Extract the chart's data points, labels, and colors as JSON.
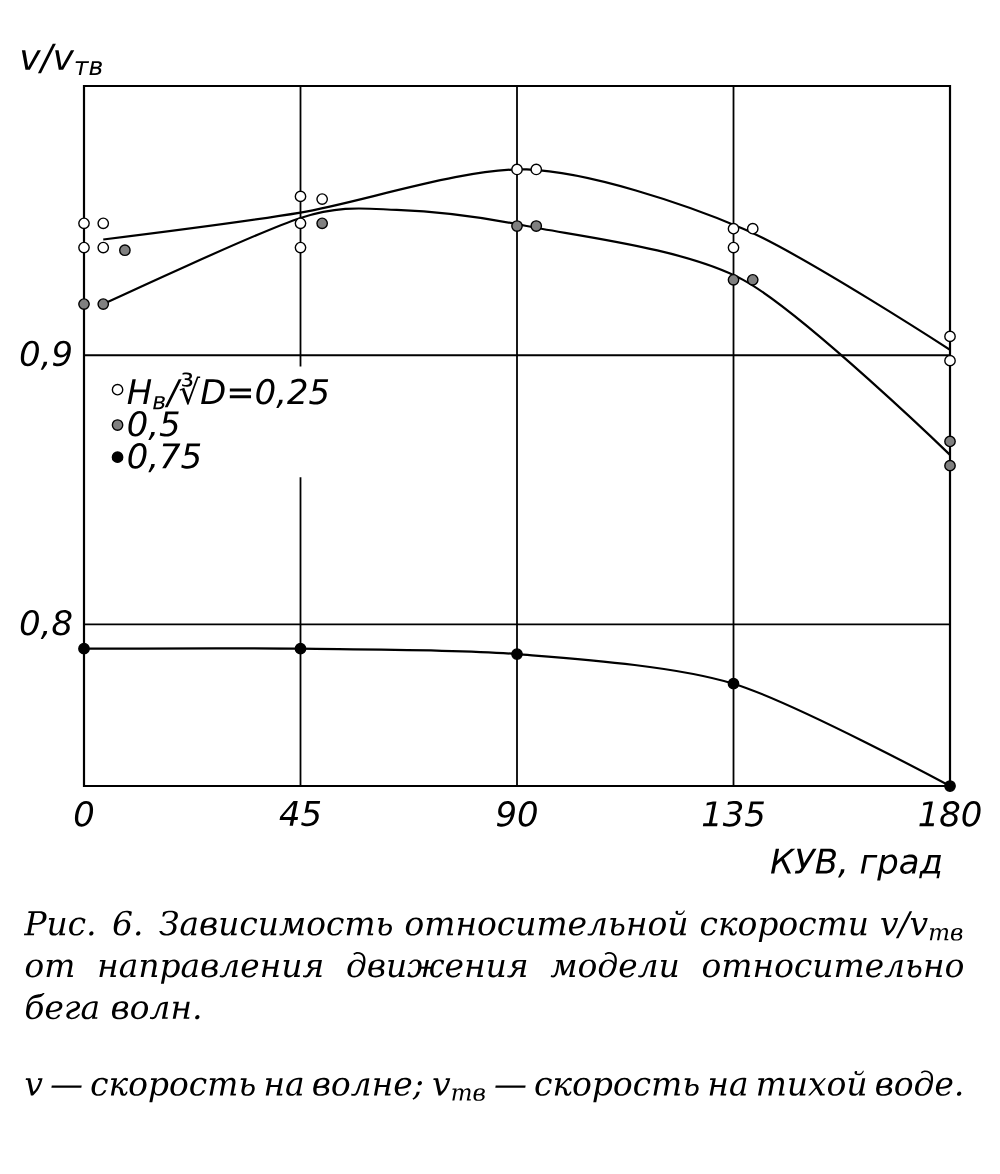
{
  "chart_data": {
    "type": "scatter",
    "xlabel": "КУВ, град",
    "ylabel": "v/v$_{тв}$",
    "xlim": [
      0,
      180
    ],
    "ylim": [
      0.74,
      1.0
    ],
    "xticks": [
      0,
      45,
      90,
      135,
      180
    ],
    "yticks": [
      {
        "value": 0.8,
        "label": "0,8"
      },
      {
        "value": 0.9,
        "label": "0,9"
      }
    ],
    "grid": true,
    "legend": "left",
    "marker": "circle",
    "series": [
      {
        "name": "Н$_{в}$/∛D=0,25",
        "color": "#000000",
        "x": [
          0,
          0,
          4,
          4,
          45,
          45,
          45,
          49.5,
          90,
          94,
          135,
          135,
          139,
          180,
          180
        ],
        "values": [
          0.949,
          0.94,
          0.949,
          0.94,
          0.959,
          0.949,
          0.94,
          0.958,
          0.969,
          0.969,
          0.947,
          0.94,
          0.947,
          0.907,
          0.898
        ]
      },
      {
        "name": "0,5",
        "color": "#000000",
        "x": [
          0,
          4,
          8.5,
          49.5,
          90,
          94,
          135,
          139,
          180,
          180
        ],
        "values": [
          0.919,
          0.919,
          0.939,
          0.949,
          0.948,
          0.948,
          0.928,
          0.928,
          0.868,
          0.859
        ]
      },
      {
        "name": "0,75",
        "color": "#000000",
        "x": [
          0,
          45,
          90,
          135,
          180
        ],
        "values": [
          0.791,
          0.791,
          0.789,
          0.778,
          0.74
        ]
      },
      {
        "type": "line",
        "marker": "none",
        "color": "#000000",
        "x": [
          4,
          45,
          92,
          137,
          180
        ],
        "values": [
          0.943,
          0.953,
          0.969,
          0.947,
          0.902
        ]
      },
      {
        "type": "line",
        "marker": "none",
        "color": "#000000",
        "x": [
          4,
          45,
          65,
          92,
          137,
          180
        ],
        "values": [
          0.919,
          0.951,
          0.954,
          0.948,
          0.928,
          0.863
        ]
      },
      {
        "type": "line",
        "marker": "none",
        "color": "#000000",
        "x": [
          0,
          45,
          90,
          135,
          180
        ],
        "values": [
          0.791,
          0.791,
          0.789,
          0.778,
          0.74
        ]
      }
    ],
    "annotations": [
      "Рис. 6. Зависимость относительной скорости v/v$_{тв}$ от направления движения модели относительно бега волн.",
      "v — скорость на волне; v$_{тв}$ — скорость на тихой воде."
    ]
  }
}
